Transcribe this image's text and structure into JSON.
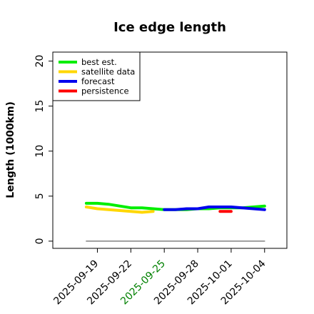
{
  "chart_data": {
    "type": "line",
    "title": "Ice edge length",
    "xlabel": "",
    "ylabel": "Length (1000km)",
    "ylim": [
      -0.8,
      21
    ],
    "yticks": [
      0,
      5,
      10,
      15,
      20
    ],
    "xlim": [
      "2025-09-15",
      "2025-10-06"
    ],
    "xticks": [
      "2025-09-19",
      "2025-09-22",
      "2025-09-25",
      "2025-09-28",
      "2025-10-01",
      "2025-10-04"
    ],
    "highlight_tick": "2025-09-25",
    "highlight_color": "#008000",
    "grid": false,
    "legend_position": "top-left",
    "series": [
      {
        "name": "best est.",
        "color": "#00ee00",
        "x": [
          "2025-09-18",
          "2025-09-19",
          "2025-09-20",
          "2025-09-21",
          "2025-09-22",
          "2025-09-23",
          "2025-09-24",
          "2025-09-25",
          "2025-09-26",
          "2025-09-27",
          "2025-09-28",
          "2025-09-29",
          "2025-09-30",
          "2025-10-01",
          "2025-10-02",
          "2025-10-03",
          "2025-10-04"
        ],
        "values": [
          4.2,
          4.2,
          4.1,
          3.9,
          3.7,
          3.7,
          3.6,
          3.5,
          3.5,
          3.5,
          3.6,
          3.6,
          3.7,
          3.7,
          3.7,
          3.8,
          3.9
        ]
      },
      {
        "name": "satellite data",
        "color": "#ffd700",
        "x": [
          "2025-09-18",
          "2025-09-19",
          "2025-09-20",
          "2025-09-21",
          "2025-09-22",
          "2025-09-23",
          "2025-09-24"
        ],
        "values": [
          3.8,
          3.6,
          3.5,
          3.4,
          3.3,
          3.2,
          3.3
        ]
      },
      {
        "name": "forecast",
        "color": "#0000ee",
        "x": [
          "2025-09-25",
          "2025-09-26",
          "2025-09-27",
          "2025-09-28",
          "2025-09-29",
          "2025-09-30",
          "2025-10-01",
          "2025-10-02",
          "2025-10-03",
          "2025-10-04"
        ],
        "values": [
          3.5,
          3.5,
          3.6,
          3.6,
          3.8,
          3.8,
          3.8,
          3.7,
          3.6,
          3.5
        ]
      },
      {
        "name": "persistence",
        "color": "#ff0000",
        "x": [
          "2025-09-30",
          "2025-10-01"
        ],
        "values": [
          3.3,
          3.3
        ]
      },
      {
        "name": "",
        "color": "#808080",
        "x": [
          "2025-09-18",
          "2025-10-04"
        ],
        "values": [
          0,
          0
        ]
      }
    ]
  }
}
